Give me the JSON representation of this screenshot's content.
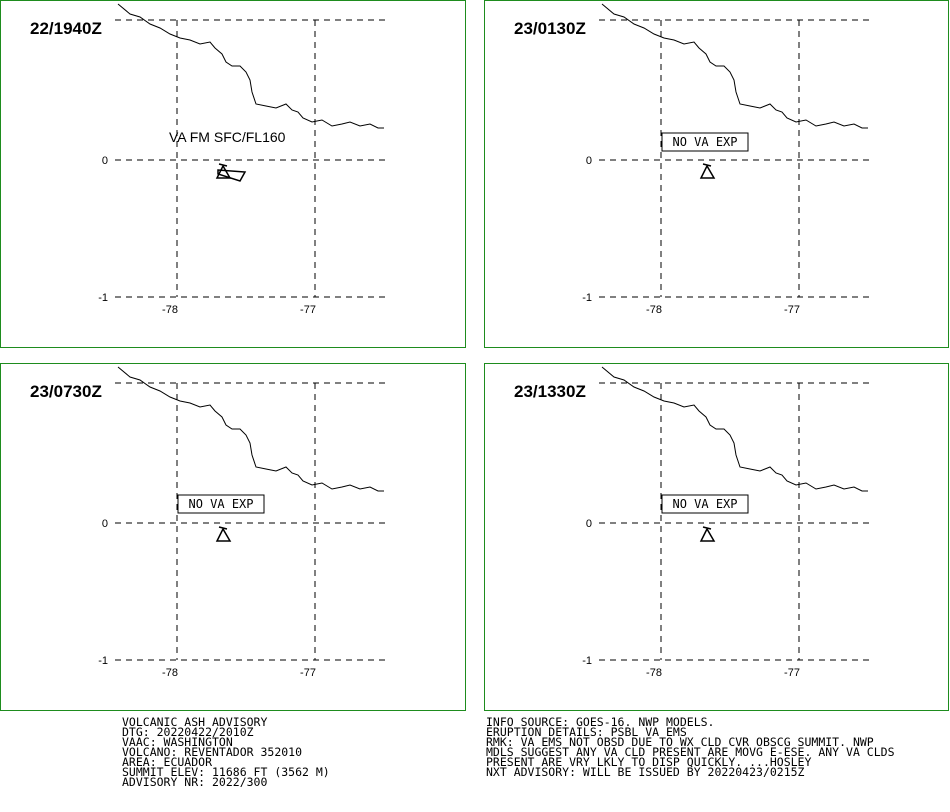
{
  "panels": [
    {
      "time_label": "22/1940Z",
      "annotation": {
        "text": "VA FM SFC/FL160",
        "boxed": false
      },
      "ash_cloud_shown": true
    },
    {
      "time_label": "23/0130Z",
      "annotation": {
        "text": "NO VA EXP",
        "boxed": true
      },
      "ash_cloud_shown": false
    },
    {
      "time_label": "23/0730Z",
      "annotation": {
        "text": "NO VA EXP",
        "boxed": true
      },
      "ash_cloud_shown": false
    },
    {
      "time_label": "23/1330Z",
      "annotation": {
        "text": "NO VA EXP",
        "boxed": true
      },
      "ash_cloud_shown": false
    }
  ],
  "map": {
    "lat_labels": [
      "0",
      "-1"
    ],
    "lon_labels": [
      "-78",
      "-77"
    ],
    "frame_color": "#1e8c1e",
    "volcano_icon": "volcano-triangle-icon"
  },
  "advisory": {
    "left_lines": [
      "VOLCANIC ASH ADVISORY",
      "DTG: 20220422/2010Z",
      "VAAC: WASHINGTON",
      "VOLCANO: REVENTADOR 352010",
      "AREA: ECUADOR",
      "SUMMIT ELEV: 11686 FT (3562 M)",
      "ADVISORY NR: 2022/300"
    ],
    "right_lines": [
      "INFO SOURCE: GOES-16. NWP MODELS.",
      "ERUPTION DETAILS: PSBL VA EMS",
      "RMK: VA EMS NOT OBSD DUE TO WX CLD CVR OBSCG SUMMIT. NWP",
      "MDLS SUGGEST ANY VA CLD PRESENT ARE MOVG E-ESE. ANY VA CLDS",
      "PRESENT ARE VRY LKLY TO DISP QUICKLY. ...HOSLEY",
      "NXT ADVISORY: WILL BE ISSUED BY 20220423/0215Z"
    ]
  }
}
